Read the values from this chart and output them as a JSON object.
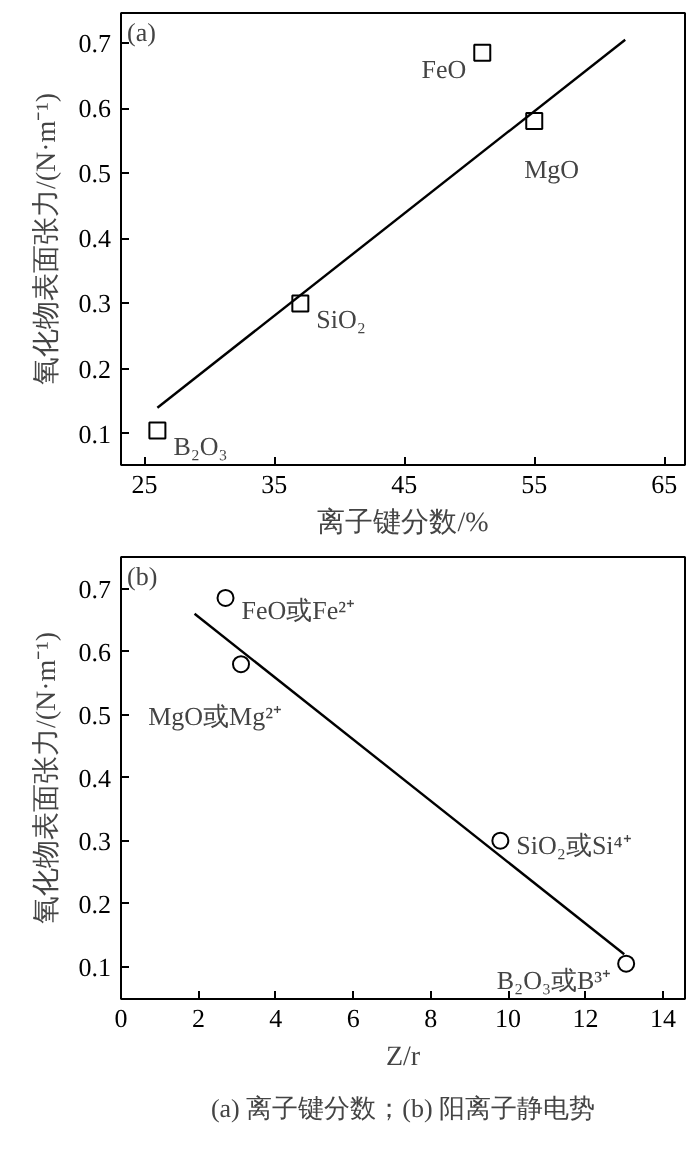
{
  "chart_data": [
    {
      "type": "scatter",
      "title": "(a)",
      "xlabel": "离子键分数/%",
      "ylabel": "氧化物表面张力/(N·m⁻¹)",
      "xlim": [
        23.2,
        66.6
      ],
      "ylim": [
        0.052,
        0.746
      ],
      "xticks": [
        25,
        35,
        45,
        55,
        65
      ],
      "yticks": [
        0.1,
        0.2,
        0.3,
        0.4,
        0.5,
        0.6,
        0.7
      ],
      "grid": false,
      "series": [
        {
          "marker": "square",
          "color": "#000000",
          "x": [
            26,
            37,
            51,
            55
          ],
          "values": [
            0.105,
            0.3,
            0.685,
            0.58
          ]
        },
        {
          "type": "line",
          "color": "#000000",
          "x": [
            26,
            62
          ],
          "values": [
            0.14,
            0.705
          ]
        }
      ],
      "annotations": [
        {
          "text": "B₂O₃",
          "x": 26,
          "y": 0.105
        },
        {
          "text": "SiO₂",
          "x": 37,
          "y": 0.3
        },
        {
          "text": "FeO",
          "x": 51,
          "y": 0.685
        },
        {
          "text": "MgO",
          "x": 55,
          "y": 0.58
        }
      ]
    },
    {
      "type": "scatter",
      "title": "(b)",
      "xlabel": "Z/r",
      "ylabel": "氧化物表面张力/(N·m⁻¹)",
      "xlim": [
        0,
        14.57
      ],
      "ylim": [
        0.049,
        0.75
      ],
      "xticks": [
        0,
        2,
        4,
        6,
        8,
        10,
        12,
        14
      ],
      "yticks": [
        0.1,
        0.2,
        0.3,
        0.4,
        0.5,
        0.6,
        0.7
      ],
      "grid": false,
      "series": [
        {
          "marker": "circle",
          "color": "#000000",
          "x": [
            2.7,
            3.1,
            9.8,
            13.05
          ],
          "values": [
            0.685,
            0.58,
            0.3,
            0.105
          ]
        },
        {
          "type": "line",
          "color": "#000000",
          "x": [
            1.9,
            13
          ],
          "values": [
            0.66,
            0.12
          ]
        }
      ],
      "annotations": [
        {
          "text": "FeO或Fe²⁺",
          "x": 2.7,
          "y": 0.685
        },
        {
          "text": "MgO或Mg²⁺",
          "x": 3.1,
          "y": 0.58
        },
        {
          "text": "SiO₂或Si⁴⁺",
          "x": 9.8,
          "y": 0.3
        },
        {
          "text": "B₂O₃或B³⁺",
          "x": 13.05,
          "y": 0.105
        },
        "(a) 离子键分数；(b) 阳离子静电势"
      ]
    }
  ]
}
